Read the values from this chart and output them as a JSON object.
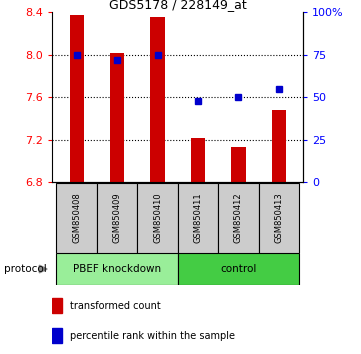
{
  "title": "GDS5178 / 228149_at",
  "samples": [
    "GSM850408",
    "GSM850409",
    "GSM850410",
    "GSM850411",
    "GSM850412",
    "GSM850413"
  ],
  "bar_values": [
    8.38,
    8.02,
    8.36,
    7.22,
    7.13,
    7.48
  ],
  "bar_bottom": 6.8,
  "percentile_right": [
    75,
    72,
    75,
    48,
    50,
    55
  ],
  "ylim_left": [
    6.8,
    8.4
  ],
  "ylim_right": [
    0,
    100
  ],
  "yticks_left": [
    6.8,
    7.2,
    7.6,
    8.0,
    8.4
  ],
  "yticks_right": [
    0,
    25,
    50,
    75,
    100
  ],
  "ytick_labels_right": [
    "0",
    "25",
    "50",
    "75",
    "100%"
  ],
  "bar_color": "#cc0000",
  "blue_color": "#0000cc",
  "groups": [
    {
      "label": "PBEF knockdown",
      "start": 0,
      "end": 3,
      "color": "#99ee99"
    },
    {
      "label": "control",
      "start": 3,
      "end": 6,
      "color": "#44cc44"
    }
  ],
  "protocol_label": "protocol",
  "legend_items": [
    {
      "color": "#cc0000",
      "label": "transformed count"
    },
    {
      "color": "#0000cc",
      "label": "percentile rank within the sample"
    }
  ],
  "grid_color": "#888888",
  "sample_bg": "#cccccc"
}
